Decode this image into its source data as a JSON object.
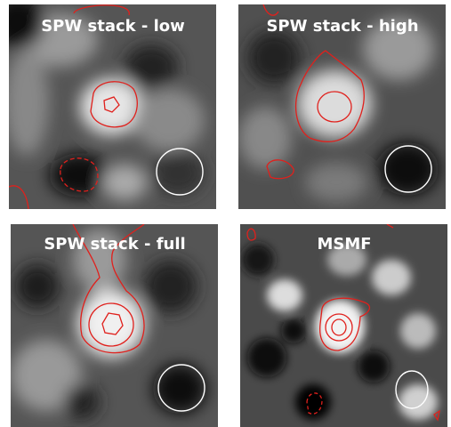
{
  "panels": [
    {
      "title": "SPW stack - low"
    },
    {
      "title": "SPW stack - high"
    },
    {
      "title": "SPW stack - full"
    },
    {
      "title": "MSMF"
    }
  ]
}
